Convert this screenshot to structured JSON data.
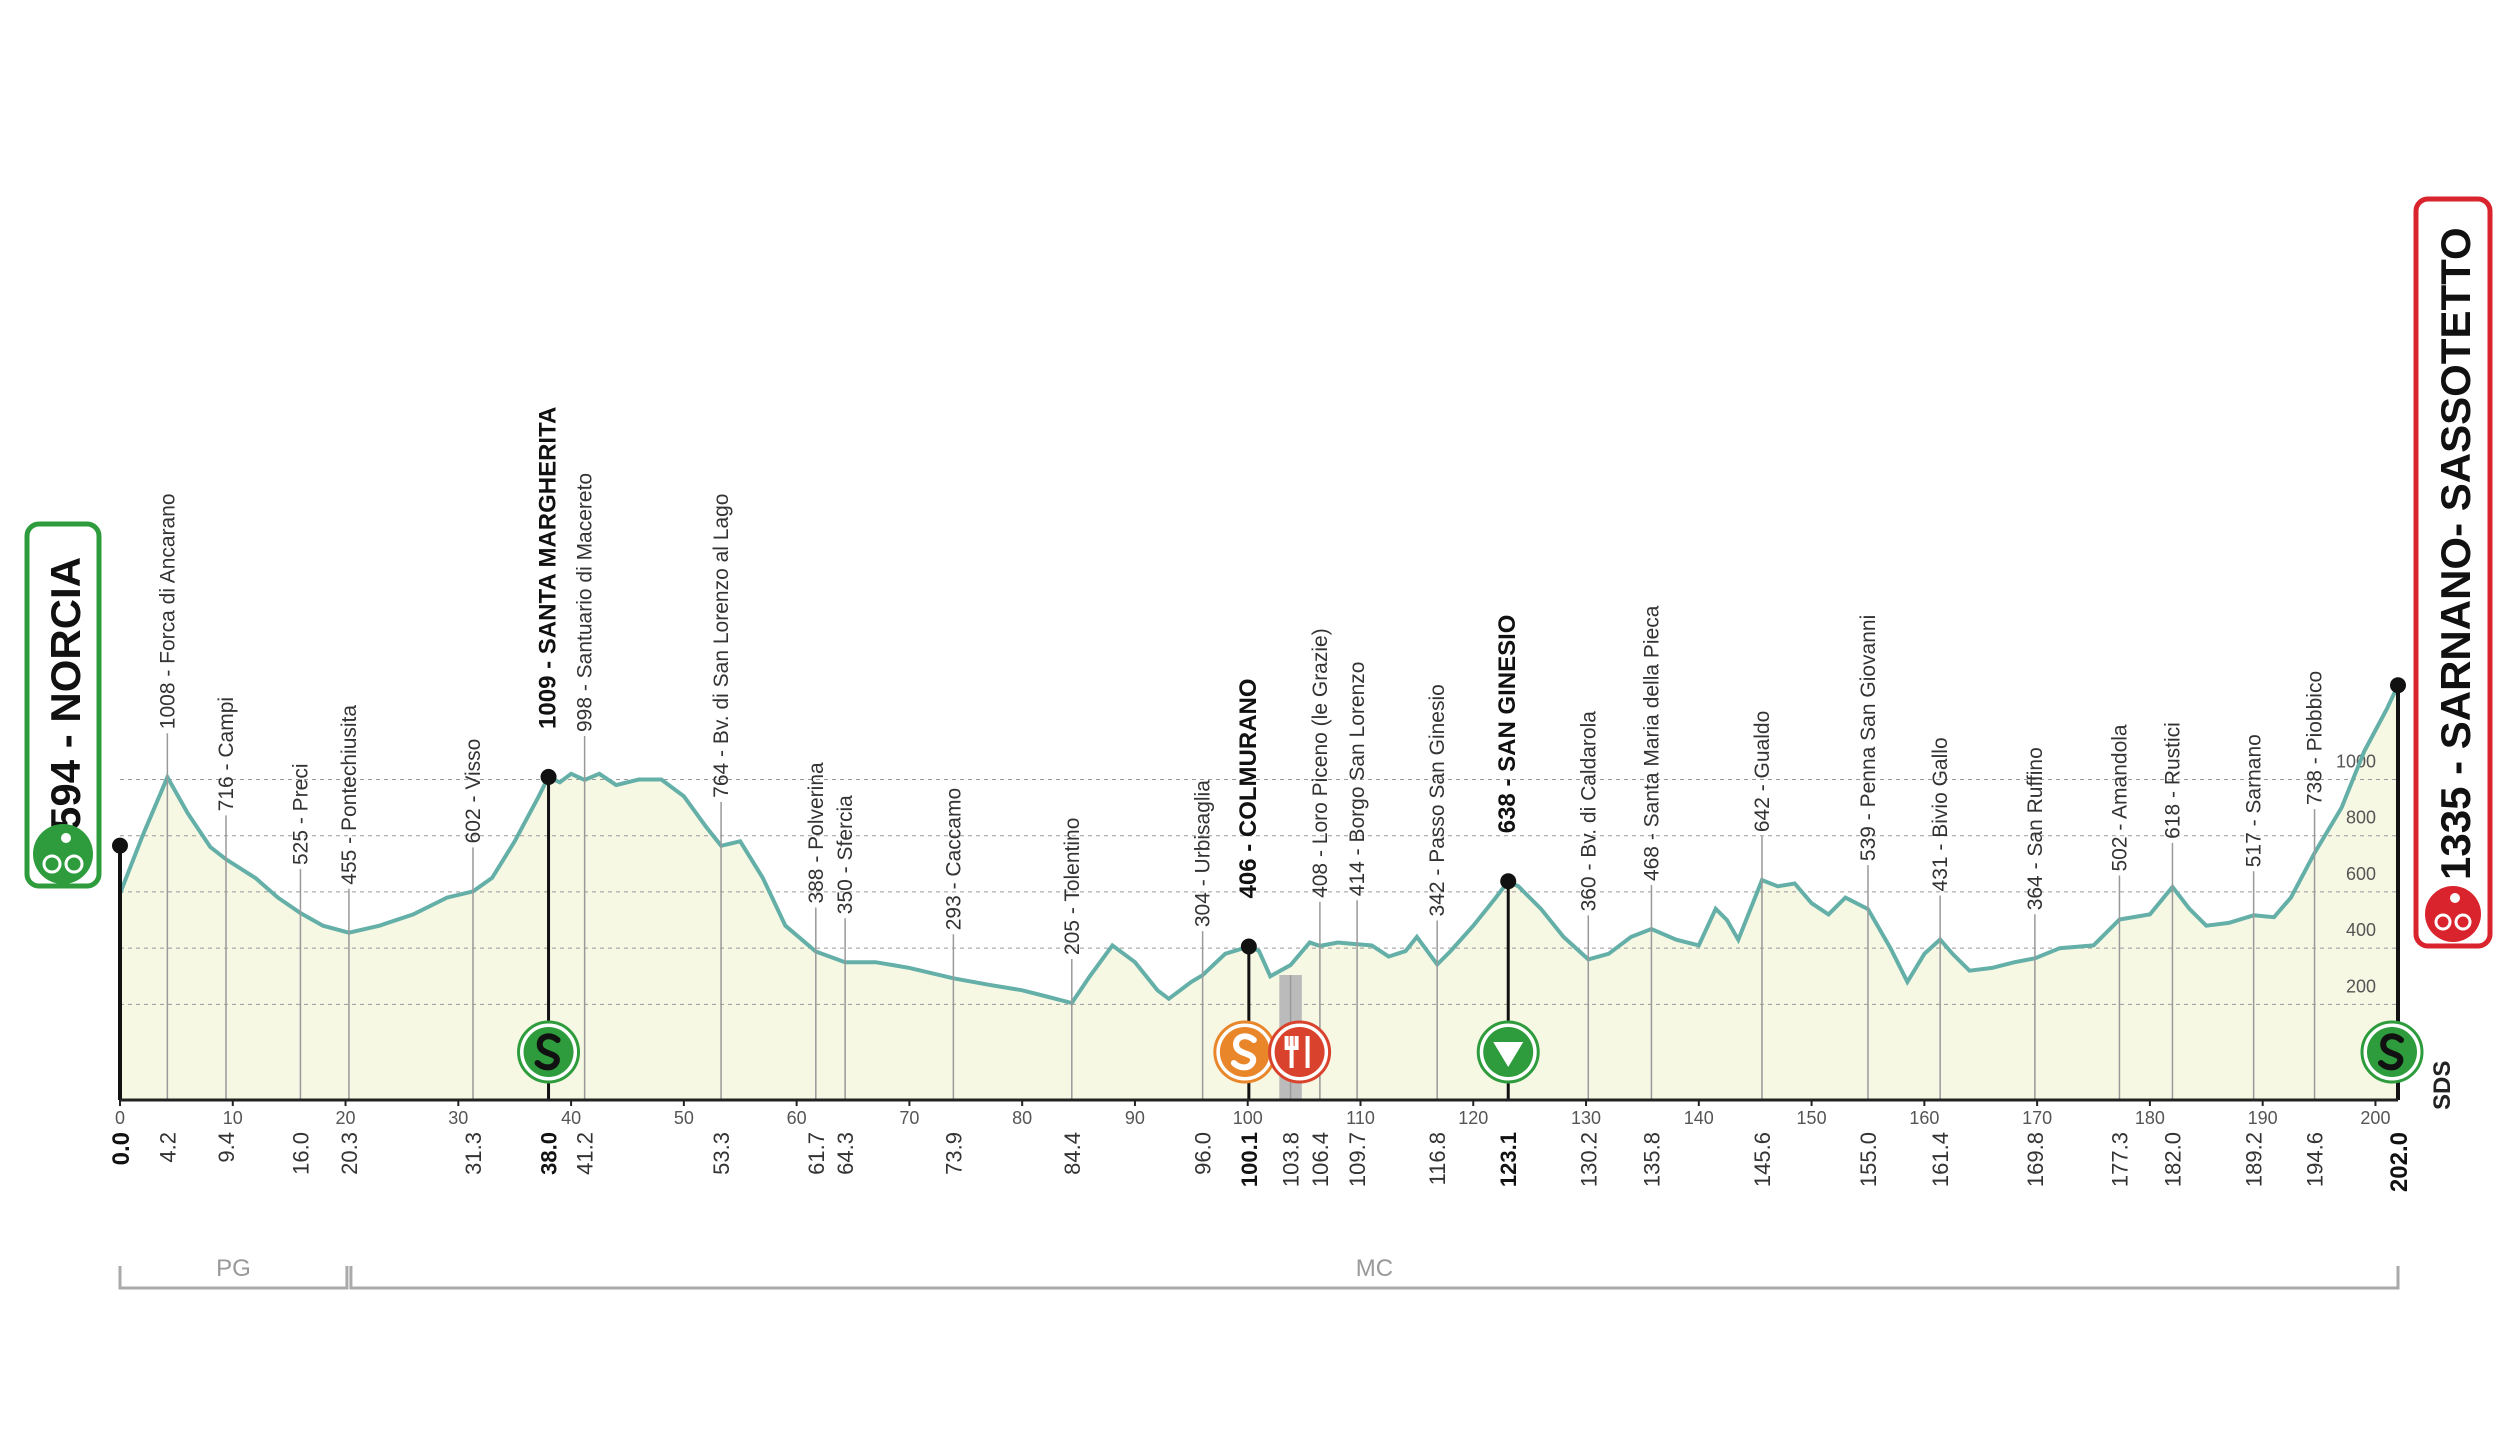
{
  "chart_data": {
    "type": "elevation-profile",
    "start": {
      "km": {
        "value": 0,
        "label": "0.0"
      },
      "label": "594 - NORCIA"
    },
    "finish": {
      "km": {
        "value": 202,
        "label": "202.0"
      },
      "label": "1335 - SARNANO- SASSOTETTO"
    },
    "waypoints": [
      {
        "km": 4.2,
        "label": "1008 - Forca di Ancarano"
      },
      {
        "km": 9.4,
        "label": "716 - Campi"
      },
      {
        "km": {
          "value": 16,
          "label": "16.0"
        },
        "label": "525 - Preci"
      },
      {
        "km": 20.3,
        "label": "455 - Pontechiusita"
      },
      {
        "km": 31.3,
        "label": "602 - Visso"
      },
      {
        "km": {
          "value": 38,
          "label": "38.0"
        },
        "label": "1009 - SANTA MARGHERITA",
        "bold": true
      },
      {
        "km": 41.2,
        "label": "998 - Santuario di Macereto"
      },
      {
        "km": 53.3,
        "label": "764 - Bv. di San Lorenzo al Lago"
      },
      {
        "km": 61.7,
        "label": "388 - Polverina"
      },
      {
        "km": 64.3,
        "label": "350 - Sfercia"
      },
      {
        "km": 73.9,
        "label": "293 - Caccamo"
      },
      {
        "km": 84.4,
        "label": "205 - Tolentino"
      },
      {
        "km": {
          "value": 96,
          "label": "96.0"
        },
        "label": "304 - Urbisaglia"
      },
      {
        "km": 100.1,
        "label": "406 - COLMURANO",
        "bold": true
      },
      {
        "km": 103.8
      },
      {
        "km": 106.4,
        "label": "408 - Loro Piceno (le Grazie)"
      },
      {
        "km": 109.7,
        "label": "414 - Borgo San Lorenzo"
      },
      {
        "km": 116.8,
        "label": "342 - Passo San Ginesio"
      },
      {
        "km": 123.1,
        "label": "638 - SAN GINESIO",
        "bold": true
      },
      {
        "km": 130.2,
        "label": "360 - Bv. di Caldarola"
      },
      {
        "km": 135.8,
        "label": "468 - Santa Maria della Pieca"
      },
      {
        "km": 145.6,
        "label": "642 - Gualdo"
      },
      {
        "km": {
          "value": 155,
          "label": "155.0"
        },
        "label": "539 - Penna San Giovanni"
      },
      {
        "km": 161.4,
        "label": "431 - Bivio Gallo"
      },
      {
        "km": 169.8,
        "label": "364 - San Ruffino"
      },
      {
        "km": 177.3,
        "label": "502 - Amandola"
      },
      {
        "km": {
          "value": 182,
          "label": "182.0"
        },
        "label": "618 - Rustici"
      },
      {
        "km": 189.2,
        "label": "517 - Sarnano"
      },
      {
        "km": 194.6,
        "label": "738 - Piobbico"
      }
    ],
    "profile": {
      "x": [
        0,
        2,
        4.2,
        6,
        8,
        9.4,
        12,
        14,
        16,
        18,
        20.3,
        23,
        26,
        29,
        31.3,
        33,
        35,
        37,
        38,
        39,
        40,
        41.2,
        42.5,
        44,
        46,
        48,
        50,
        52,
        53.3,
        55,
        57,
        59,
        61.7,
        64.3,
        67,
        70,
        73.9,
        77,
        80,
        82,
        84.4,
        86,
        88,
        90,
        92,
        93,
        95,
        96,
        98,
        100.1,
        101,
        102,
        103.8,
        105.5,
        106.4,
        108,
        109.7,
        111,
        112.5,
        114,
        115,
        116.8,
        118,
        120,
        122,
        123.1,
        124,
        126,
        128,
        130.2,
        132,
        134,
        135.8,
        138,
        140,
        141.5,
        142.5,
        143.5,
        145.6,
        147,
        148.5,
        150,
        151.5,
        153,
        155,
        157,
        158.5,
        160,
        161.4,
        162.5,
        164,
        166,
        168,
        169.8,
        172,
        175,
        177.3,
        180,
        182,
        183.5,
        185,
        187,
        189.2,
        191,
        192.5,
        194.6,
        197,
        199,
        201,
        202
      ],
      "y": [
        594,
        800,
        1008,
        880,
        760,
        716,
        650,
        580,
        525,
        480,
        455,
        480,
        520,
        580,
        602,
        650,
        780,
        930,
        1009,
        990,
        1020,
        998,
        1020,
        980,
        1000,
        1000,
        940,
        830,
        764,
        780,
        650,
        480,
        388,
        350,
        350,
        330,
        293,
        270,
        250,
        230,
        205,
        300,
        410,
        350,
        250,
        220,
        280,
        304,
        380,
        406,
        390,
        300,
        340,
        420,
        408,
        420,
        414,
        410,
        370,
        390,
        440,
        342,
        390,
        480,
        580,
        638,
        620,
        540,
        440,
        360,
        380,
        440,
        468,
        430,
        410,
        540,
        500,
        430,
        642,
        620,
        630,
        560,
        520,
        580,
        539,
        400,
        280,
        380,
        431,
        380,
        320,
        330,
        350,
        364,
        400,
        410,
        502,
        520,
        618,
        540,
        480,
        490,
        517,
        510,
        580,
        738,
        900,
        1100,
        1250,
        1335
      ]
    },
    "xlim": [
      0,
      202
    ],
    "ylim": [
      -140,
      1400
    ],
    "xticks": [
      0,
      10,
      20,
      30,
      40,
      50,
      60,
      70,
      80,
      90,
      100,
      110,
      120,
      130,
      140,
      150,
      160,
      170,
      180,
      190,
      200
    ],
    "yticks": [
      200,
      400,
      600,
      800,
      1000
    ],
    "grid": true,
    "line_color": "#64b0a8",
    "fill_color": "#f7f8e4",
    "regions": [
      {
        "label": "PG",
        "from": 0,
        "to": 20.3
      },
      {
        "label": "MC",
        "from": 20.3,
        "to": 202
      }
    ],
    "logo": "SDS"
  }
}
